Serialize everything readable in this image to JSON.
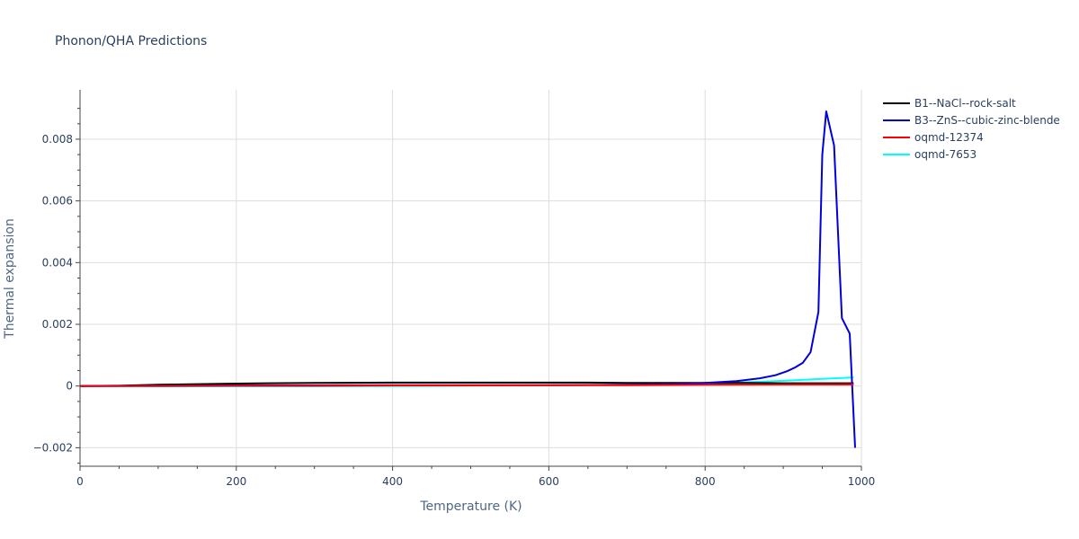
{
  "chart_data": {
    "type": "line",
    "title": "Phonon/QHA Predictions",
    "xlabel": "Temperature (K)",
    "ylabel": "Thermal expansion",
    "xlim": [
      0,
      1000
    ],
    "ylim": [
      -0.0026,
      0.0096
    ],
    "x_ticks": [
      0,
      200,
      400,
      600,
      800,
      1000
    ],
    "x_tick_labels": [
      "0",
      "200",
      "400",
      "600",
      "800",
      "1000"
    ],
    "y_ticks": [
      -0.002,
      0,
      0.002,
      0.004,
      0.006,
      0.008
    ],
    "y_tick_labels": [
      "−0.002",
      "0",
      "0.002",
      "0.004",
      "0.006",
      "0.008"
    ],
    "grid": true,
    "legend_position": "top-right outside",
    "series": [
      {
        "name": "B1--NaCl--rock-salt",
        "color": "#000000",
        "x": [
          0,
          50,
          100,
          150,
          200,
          240,
          300,
          400,
          450,
          500,
          600,
          650,
          700,
          750,
          800,
          850,
          900,
          950,
          990
        ],
        "y": [
          0,
          1e-05,
          4e-05,
          6e-05,
          8e-05,
          9e-05,
          0.0001,
          0.00011,
          0.00011,
          0.00011,
          0.00011,
          0.00011,
          0.0001,
          0.0001,
          0.0001,
          0.0001,
          9e-05,
          9e-05,
          9e-05
        ]
      },
      {
        "name": "B3--ZnS--cubic-zinc-blende",
        "color": "#0000dd",
        "x": [
          0,
          100,
          200,
          300,
          400,
          500,
          600,
          700,
          760,
          800,
          840,
          870,
          890,
          905,
          915,
          925,
          935,
          945,
          950,
          955,
          965,
          975,
          985,
          992
        ],
        "y": [
          0,
          1e-05,
          2e-05,
          2e-05,
          3e-05,
          3e-05,
          3e-05,
          4e-05,
          6e-05,
          0.0001,
          0.00016,
          0.00025,
          0.00035,
          0.00048,
          0.0006,
          0.00075,
          0.0011,
          0.0024,
          0.0075,
          0.0089,
          0.0078,
          0.0022,
          0.0017,
          -0.002
        ]
      },
      {
        "name": "oqmd-12374",
        "color": "#ff0000",
        "x": [
          0,
          100,
          200,
          300,
          400,
          500,
          600,
          700,
          800,
          900,
          990
        ],
        "y": [
          0,
          0,
          1e-05,
          1e-05,
          2e-05,
          2e-05,
          3e-05,
          3e-05,
          4e-05,
          5e-05,
          5e-05
        ]
      },
      {
        "name": "oqmd-7653",
        "color": "#00ffff",
        "x": [
          0,
          100,
          200,
          300,
          400,
          500,
          600,
          700,
          800,
          850,
          900,
          950,
          990
        ],
        "y": [
          0,
          -1e-05,
          -1e-05,
          -1e-05,
          0,
          1e-05,
          2e-05,
          4e-05,
          8e-05,
          0.00012,
          0.00017,
          0.00023,
          0.00028
        ]
      }
    ]
  }
}
